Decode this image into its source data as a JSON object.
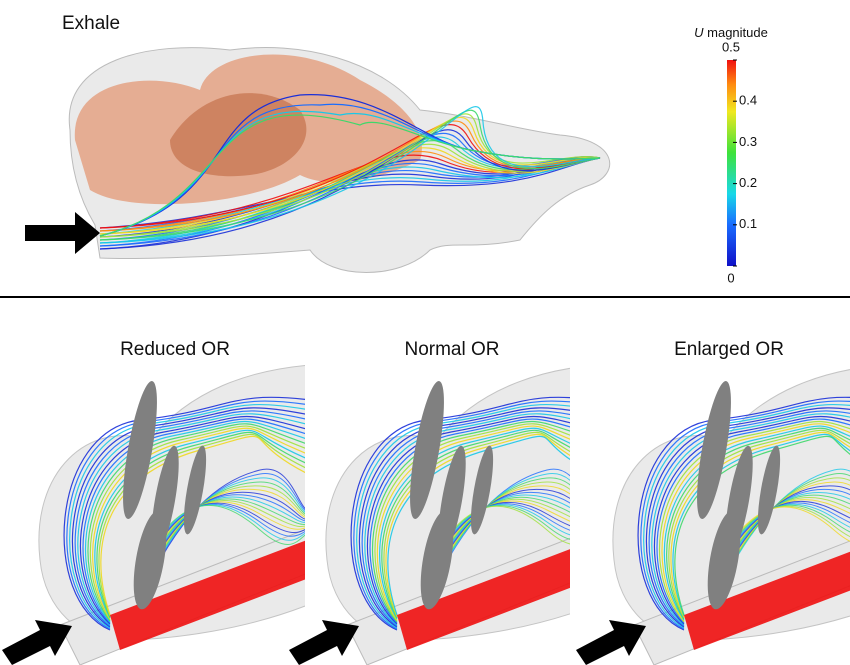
{
  "top_panel": {
    "title": "Exhale"
  },
  "colorbar": {
    "variable": "U",
    "label": "magnitude",
    "lim": [
      0,
      0.5
    ],
    "ticks": [
      0,
      0.1,
      0.2,
      0.3,
      0.4,
      0.5
    ]
  },
  "bottom_panels": [
    {
      "title": "Reduced OR"
    },
    {
      "title": "Normal OR"
    },
    {
      "title": "Enlarged OR"
    }
  ]
}
